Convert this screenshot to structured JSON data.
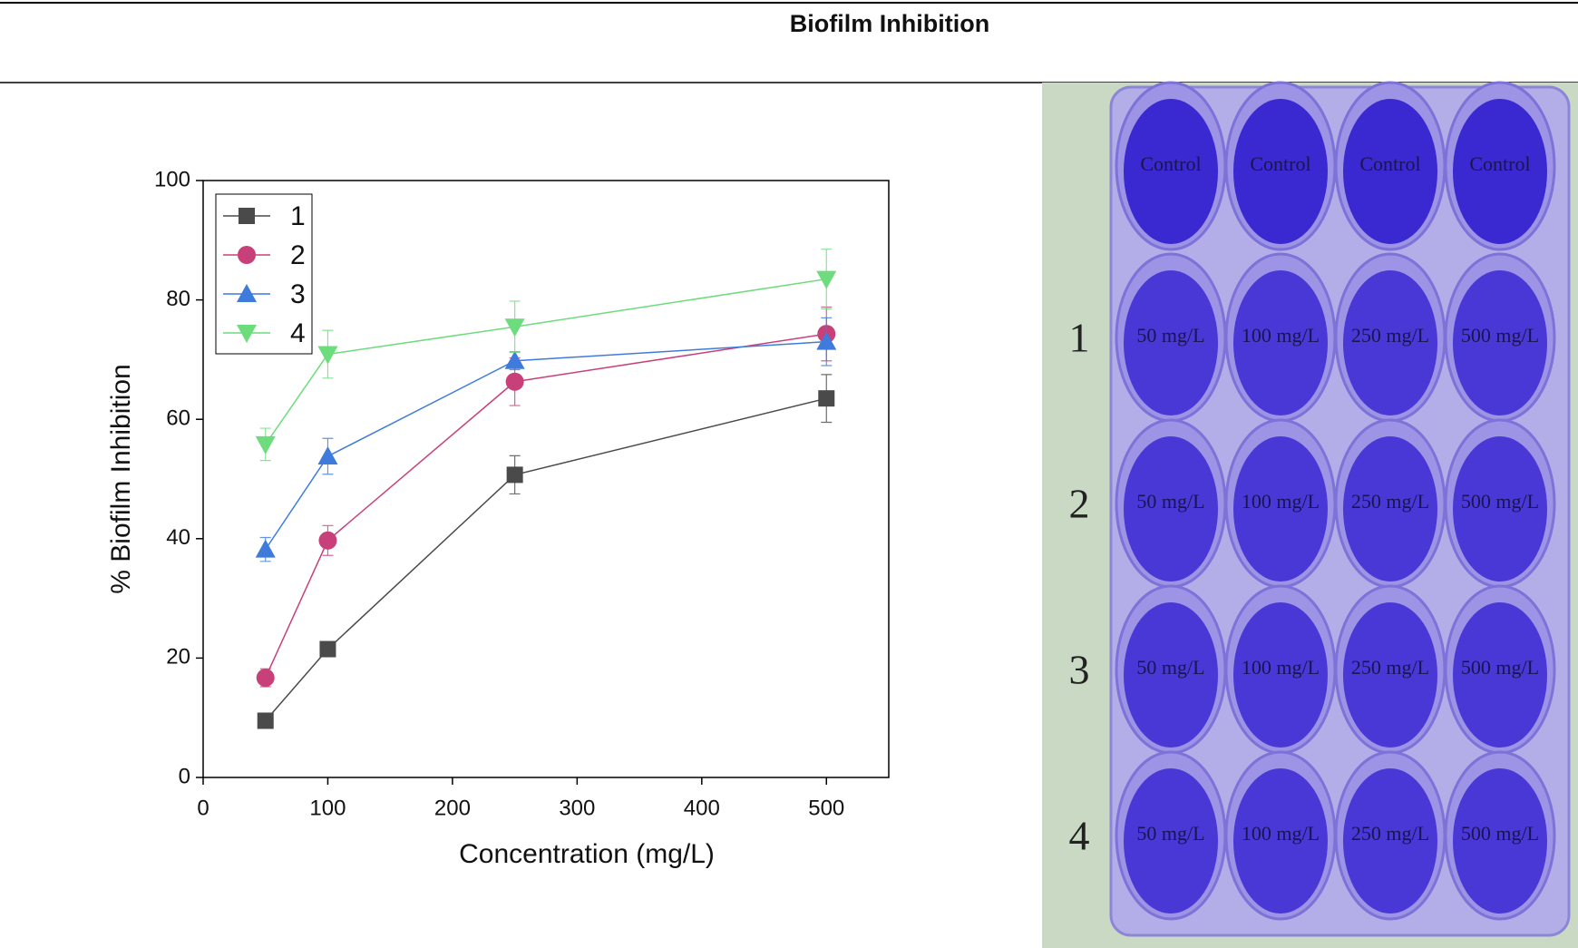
{
  "header": {
    "title": "Biofilm Inhibition"
  },
  "chart_data": {
    "type": "line",
    "x_label": "Concentration (mg/L)",
    "y_label": "% Biofilm Inhibition",
    "x": [
      50,
      100,
      250,
      500
    ],
    "xlim": [
      0,
      550
    ],
    "ylim": [
      0,
      100
    ],
    "xticks": [
      0,
      100,
      200,
      300,
      400,
      500
    ],
    "yticks": [
      0,
      20,
      40,
      60,
      80,
      100
    ],
    "legend": "upper left",
    "series": [
      {
        "name": "1",
        "color": "#4a4a4a",
        "marker": "square",
        "values": [
          9.5,
          21.5,
          50.7,
          63.5
        ],
        "errors": [
          1,
          1,
          3.2,
          4
        ]
      },
      {
        "name": "2",
        "color": "#c8407a",
        "marker": "circle",
        "values": [
          16.7,
          39.7,
          66.3,
          74.3
        ],
        "errors": [
          1.5,
          2.5,
          4,
          4.5
        ]
      },
      {
        "name": "3",
        "color": "#3f7bdc",
        "marker": "triangle-up",
        "values": [
          38.2,
          53.8,
          69.8,
          73.0
        ],
        "errors": [
          2,
          3,
          1.5,
          4
        ]
      },
      {
        "name": "4",
        "color": "#6cdc7c",
        "marker": "triangle-down",
        "values": [
          55.8,
          70.9,
          75.5,
          83.5
        ],
        "errors": [
          2.7,
          4,
          4.3,
          5
        ]
      }
    ]
  },
  "photo": {
    "row_labels": [
      "1",
      "2",
      "3",
      "4"
    ],
    "wells": [
      [
        "Control",
        "Control",
        "Control",
        "Control"
      ],
      [
        "50 mg/L",
        "100 mg/L",
        "250 mg/L",
        "500 mg/L"
      ],
      [
        "50 mg/L",
        "100 mg/L",
        "250 mg/L",
        "500 mg/L"
      ],
      [
        "50 mg/L",
        "100 mg/L",
        "250 mg/L",
        "500 mg/L"
      ],
      [
        "50 mg/L",
        "100 mg/L",
        "250 mg/L",
        "500 mg/L"
      ]
    ]
  }
}
